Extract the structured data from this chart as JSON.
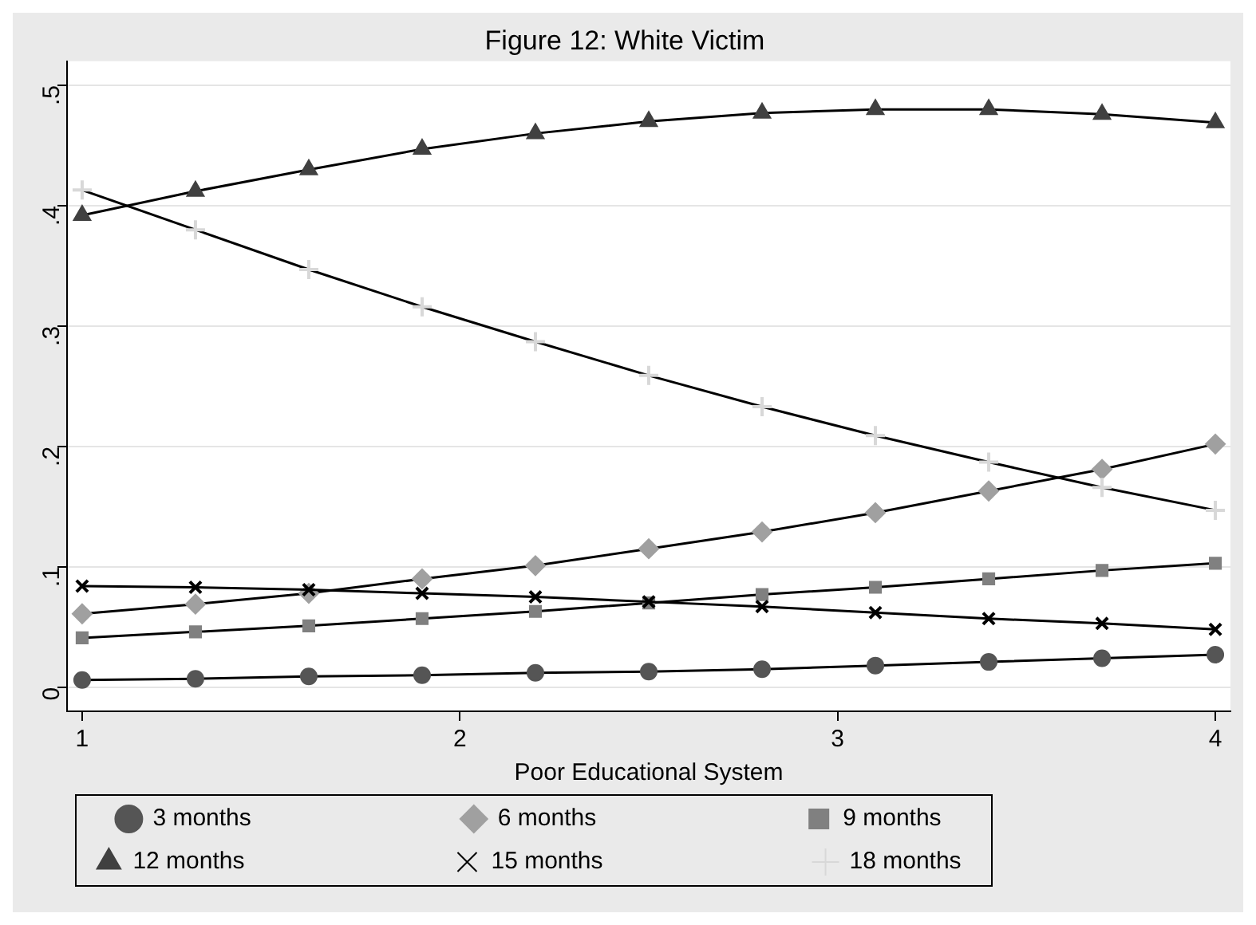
{
  "chart_data": {
    "type": "line",
    "title": "Figure 12: White Victim",
    "xlabel": "Poor Educational System",
    "x": [
      1,
      1.3,
      1.6,
      1.9,
      2.2,
      2.5,
      2.8,
      3.1,
      3.4,
      3.7,
      4
    ],
    "xlim": [
      0.96,
      4.04
    ],
    "xticks": [
      1,
      2,
      3,
      4
    ],
    "ylim": [
      -0.02,
      0.52
    ],
    "yticks": [
      {
        "value": 0,
        "label": "0"
      },
      {
        "value": 0.1,
        "label": ".1"
      },
      {
        "value": 0.2,
        "label": ".2"
      },
      {
        "value": 0.3,
        "label": ".3"
      },
      {
        "value": 0.4,
        "label": ".4"
      },
      {
        "value": 0.5,
        "label": ".5"
      }
    ],
    "grid": "y",
    "legend": "bottom",
    "series": [
      {
        "name": "3 months",
        "color": "#555555",
        "marker": "circle",
        "values": [
          0.006,
          0.007,
          0.009,
          0.01,
          0.012,
          0.013,
          0.015,
          0.018,
          0.021,
          0.024,
          0.027
        ]
      },
      {
        "name": "6 months",
        "color": "#a0a0a0",
        "marker": "diamond",
        "values": [
          0.061,
          0.069,
          0.078,
          0.09,
          0.101,
          0.115,
          0.129,
          0.145,
          0.163,
          0.181,
          0.202
        ]
      },
      {
        "name": "9 months",
        "color": "#808080",
        "marker": "square",
        "values": [
          0.041,
          0.046,
          0.051,
          0.057,
          0.063,
          0.07,
          0.077,
          0.083,
          0.09,
          0.097,
          0.103
        ]
      },
      {
        "name": "12 months",
        "color": "#404040",
        "marker": "triangle",
        "values": [
          0.392,
          0.412,
          0.43,
          0.447,
          0.46,
          0.47,
          0.477,
          0.48,
          0.48,
          0.476,
          0.469
        ]
      },
      {
        "name": "15 months",
        "color": "#000000",
        "marker": "cross",
        "values": [
          0.084,
          0.083,
          0.081,
          0.078,
          0.075,
          0.071,
          0.067,
          0.062,
          0.057,
          0.053,
          0.048
        ]
      },
      {
        "name": "18 months",
        "color": "#d8d8d8",
        "marker": "plus",
        "values": [
          0.413,
          0.38,
          0.347,
          0.316,
          0.287,
          0.259,
          0.233,
          0.209,
          0.187,
          0.166,
          0.147
        ]
      }
    ]
  }
}
